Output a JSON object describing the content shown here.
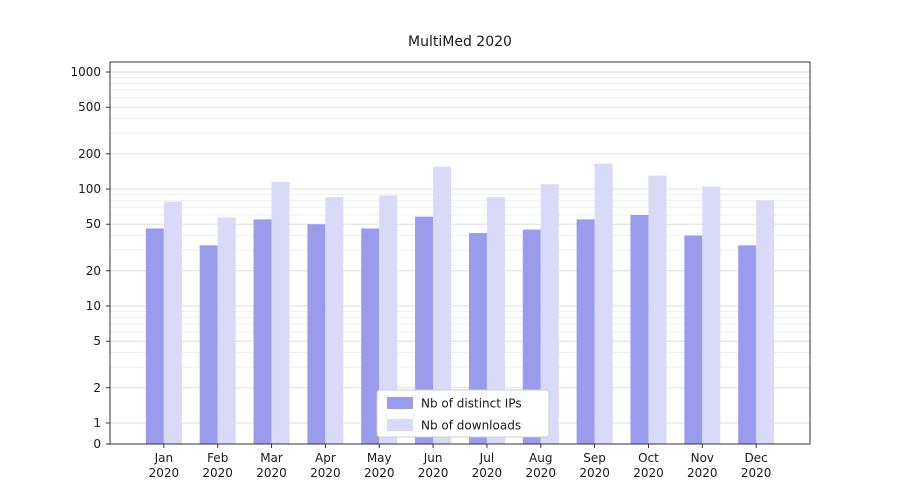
{
  "chart_data": {
    "type": "bar",
    "title": "MultiMed 2020",
    "categories": [
      "Jan",
      "Feb",
      "Mar",
      "Apr",
      "May",
      "Jun",
      "Jul",
      "Aug",
      "Sep",
      "Oct",
      "Nov",
      "Dec"
    ],
    "year_label": "2020",
    "series": [
      {
        "name": "Nb of distinct IPs",
        "color": "#9b9bee",
        "values": [
          46,
          33,
          55,
          50,
          46,
          58,
          42,
          45,
          55,
          60,
          40,
          33
        ]
      },
      {
        "name": "Nb of downloads",
        "color": "#d9d9f8",
        "values": [
          78,
          57,
          115,
          85,
          88,
          155,
          85,
          110,
          165,
          130,
          105,
          80
        ]
      }
    ],
    "yscale": "symlog",
    "yticks": [
      0,
      1,
      2,
      5,
      10,
      20,
      50,
      100,
      200,
      500,
      1000
    ],
    "ylim": [
      0,
      1400
    ],
    "grid": true,
    "legend_position": "lower center",
    "colors": {
      "grid_major": "#e2e2e2",
      "grid_minor": "#efefef",
      "axis": "#333333",
      "text": "#1a1a1a",
      "legend_border": "#cccccc",
      "legend_bg": "#ffffff"
    }
  }
}
